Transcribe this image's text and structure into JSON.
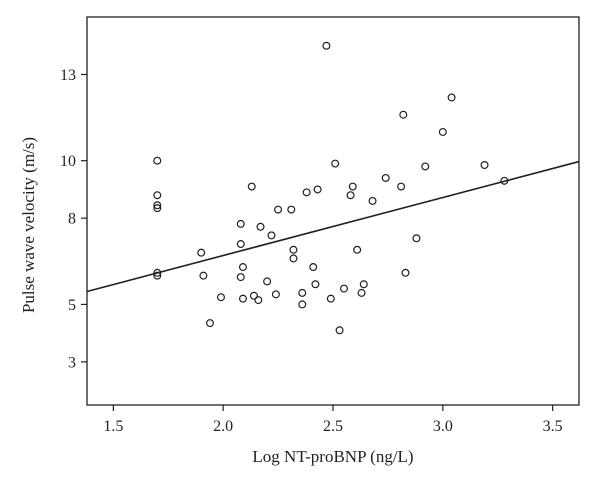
{
  "chart_data": {
    "type": "scatter",
    "title": "",
    "xlabel": "Log NT-proBNP (ng/L)",
    "ylabel": "Pulse wave velocity (m/s)",
    "xlim": [
      1.38,
      3.62
    ],
    "ylim": [
      1.5,
      15.0
    ],
    "xticks": [
      1.5,
      2.0,
      2.5,
      3.0,
      3.5
    ],
    "xtick_labels": [
      "1.5",
      "2.0",
      "2.5",
      "3.0",
      "3.5"
    ],
    "yticks": [
      3,
      5,
      8,
      10,
      13
    ],
    "ytick_labels": [
      "3",
      "5",
      "8",
      "10",
      "13"
    ],
    "grid": false,
    "legend": "none",
    "marker": "open-circle",
    "colors": {
      "marker": "#231f20",
      "line": "#231f20",
      "axis": "#231f20"
    },
    "points": [
      [
        1.7,
        10.0
      ],
      [
        1.7,
        8.8
      ],
      [
        1.7,
        8.45
      ],
      [
        1.7,
        8.35
      ],
      [
        1.7,
        6.1
      ],
      [
        1.7,
        6.0
      ],
      [
        1.9,
        6.8
      ],
      [
        1.91,
        6.0
      ],
      [
        1.94,
        4.35
      ],
      [
        1.99,
        5.25
      ],
      [
        2.08,
        7.8
      ],
      [
        2.08,
        7.1
      ],
      [
        2.08,
        5.95
      ],
      [
        2.09,
        6.3
      ],
      [
        2.09,
        5.2
      ],
      [
        2.13,
        9.1
      ],
      [
        2.14,
        5.3
      ],
      [
        2.16,
        5.15
      ],
      [
        2.17,
        7.7
      ],
      [
        2.2,
        5.8
      ],
      [
        2.22,
        7.4
      ],
      [
        2.24,
        5.35
      ],
      [
        2.25,
        8.3
      ],
      [
        2.31,
        8.3
      ],
      [
        2.32,
        6.9
      ],
      [
        2.32,
        6.6
      ],
      [
        2.36,
        5.4
      ],
      [
        2.36,
        5.0
      ],
      [
        2.38,
        8.9
      ],
      [
        2.41,
        6.3
      ],
      [
        2.42,
        5.7
      ],
      [
        2.43,
        9.0
      ],
      [
        2.47,
        14.0
      ],
      [
        2.49,
        5.2
      ],
      [
        2.51,
        9.9
      ],
      [
        2.53,
        4.1
      ],
      [
        2.55,
        5.55
      ],
      [
        2.58,
        8.8
      ],
      [
        2.59,
        9.1
      ],
      [
        2.61,
        6.9
      ],
      [
        2.63,
        5.4
      ],
      [
        2.64,
        5.7
      ],
      [
        2.68,
        8.6
      ],
      [
        2.74,
        9.4
      ],
      [
        2.81,
        9.1
      ],
      [
        2.82,
        11.6
      ],
      [
        2.83,
        6.1
      ],
      [
        2.88,
        7.3
      ],
      [
        2.92,
        9.8
      ],
      [
        3.0,
        11.0
      ],
      [
        3.04,
        12.2
      ],
      [
        3.19,
        9.85
      ],
      [
        3.28,
        9.3
      ]
    ],
    "fit_line": {
      "x": [
        1.38,
        3.62
      ],
      "y": [
        5.45,
        9.97
      ]
    }
  }
}
